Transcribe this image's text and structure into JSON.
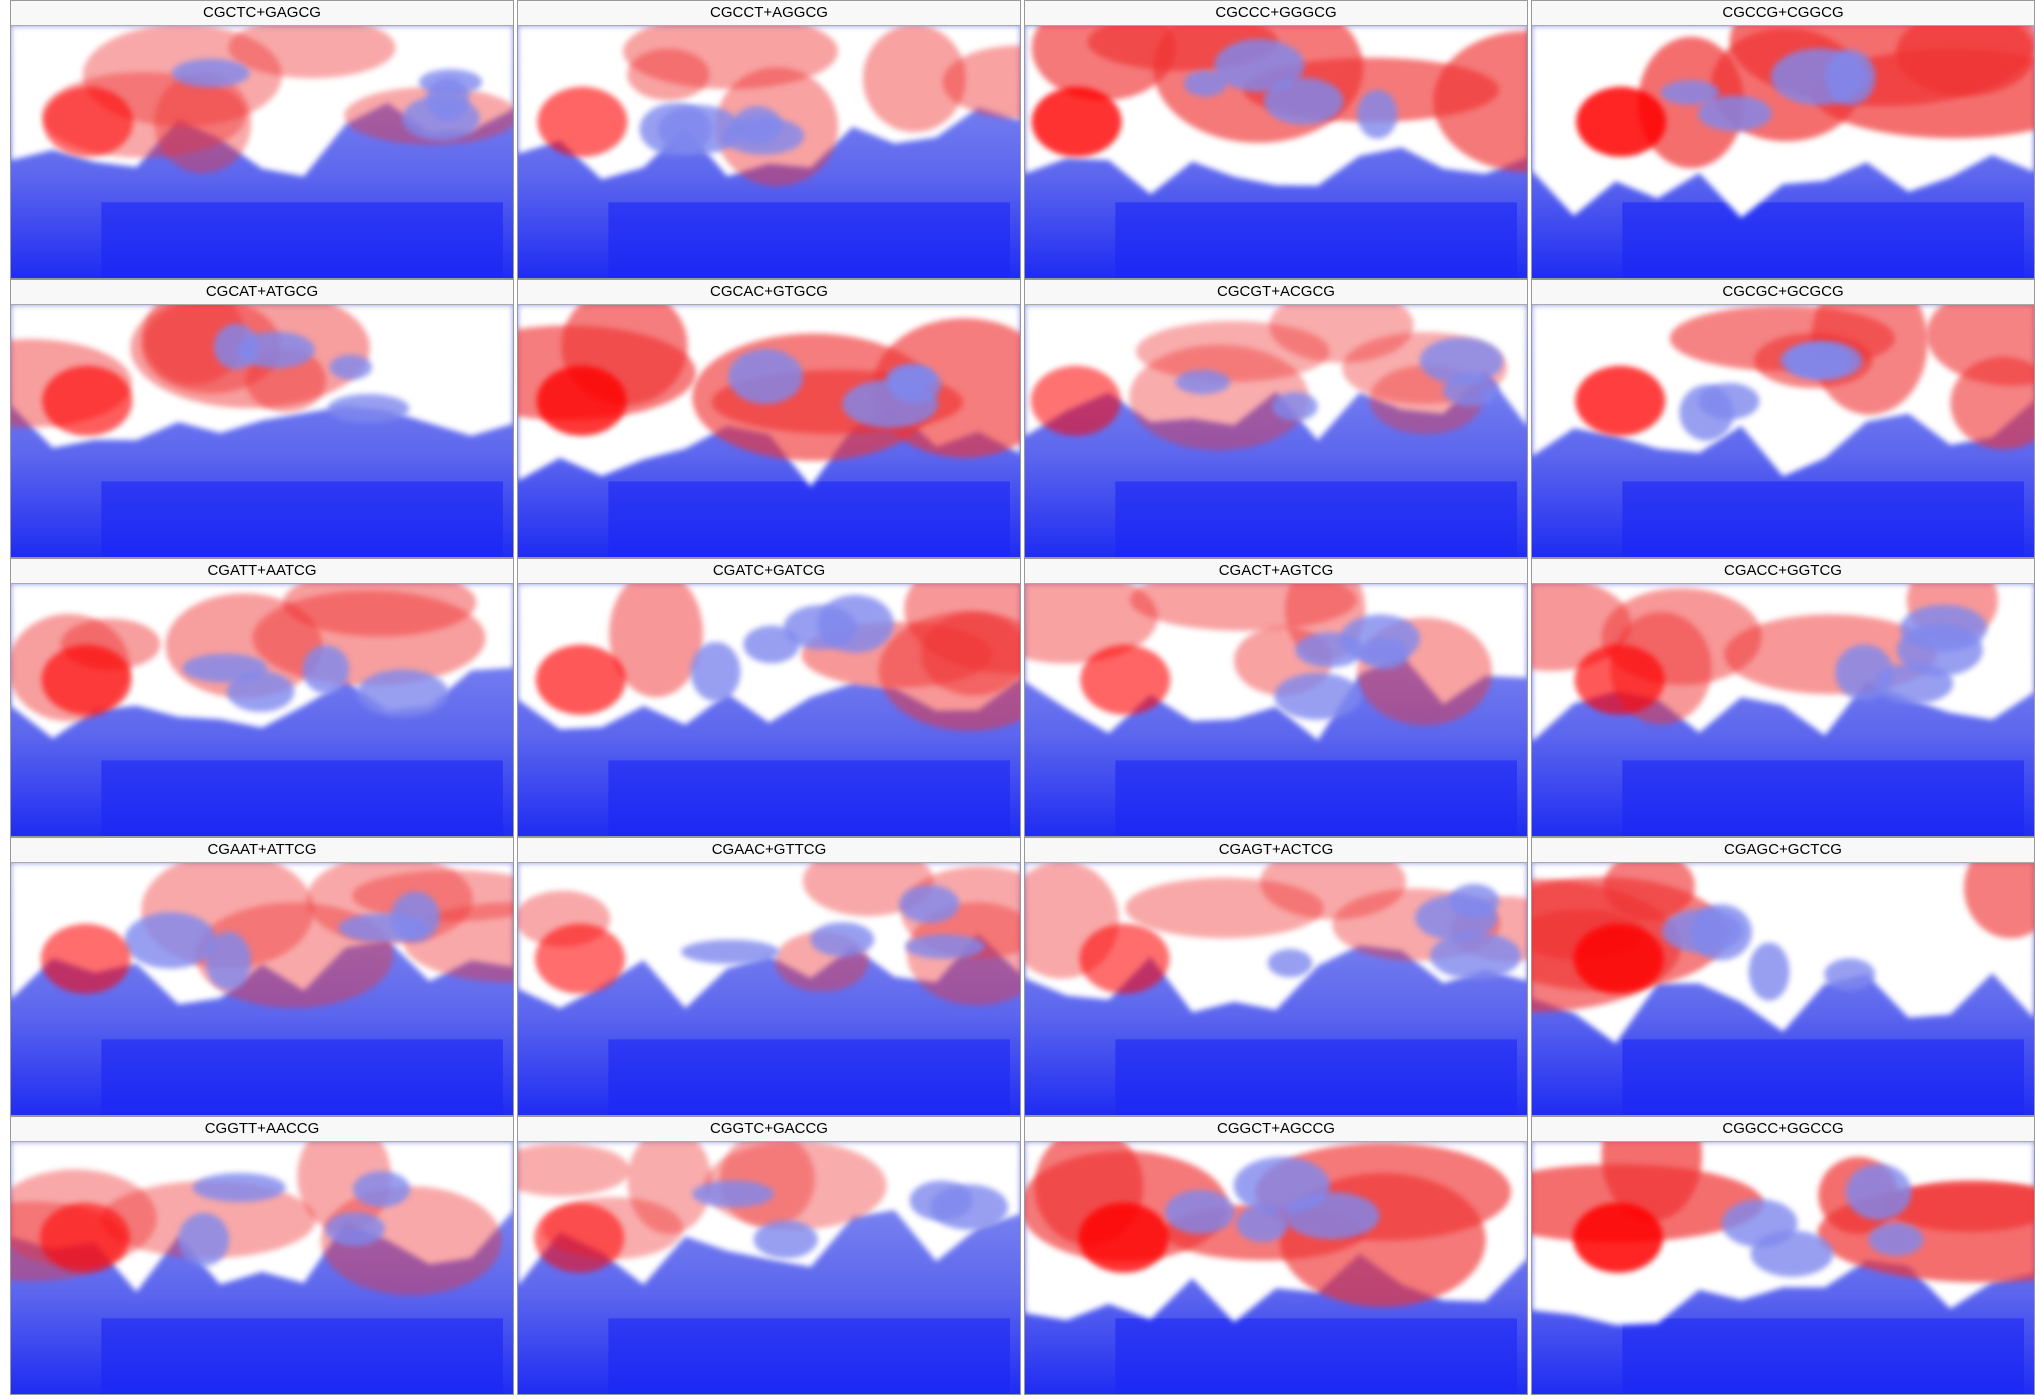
{
  "panels": [
    {
      "label": "CGCTC+GAGCG"
    },
    {
      "label": "CGCCT+AGGCG"
    },
    {
      "label": "CGCCC+GGGCG"
    },
    {
      "label": "CGCCG+CGGCG"
    },
    {
      "label": "CGCAT+ATGCG"
    },
    {
      "label": "CGCAC+GTGCG"
    },
    {
      "label": "CGCGT+ACGCG"
    },
    {
      "label": "CGCGC+GCGCG"
    },
    {
      "label": "CGATT+AATCG"
    },
    {
      "label": "CGATC+GATCG"
    },
    {
      "label": "CGACT+AGTCG"
    },
    {
      "label": "CGACC+GGTCG"
    },
    {
      "label": "CGAAT+ATTCG"
    },
    {
      "label": "CGAAC+GTTCG"
    },
    {
      "label": "CGAGT+ACTCG"
    },
    {
      "label": "CGAGC+GCTCG"
    },
    {
      "label": "CGGTT+AACCG"
    },
    {
      "label": "CGGTC+GACCG"
    },
    {
      "label": "CGGCT+AGCCG"
    },
    {
      "label": "CGGCC+GGCCG"
    }
  ]
}
